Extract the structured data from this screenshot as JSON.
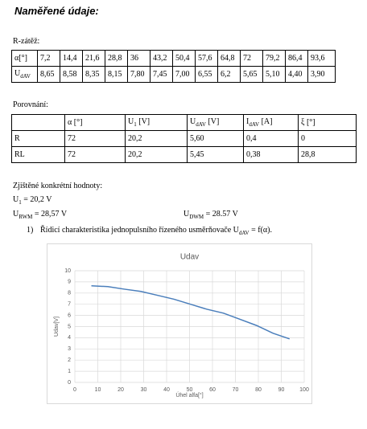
{
  "title": "Naměřené údaje:",
  "section1": {
    "heading": "R-zátěž:",
    "table": {
      "rows": [
        [
          "α[°]",
          "7,2",
          "14,4",
          "21,6",
          "28,8",
          "36",
          "43,2",
          "50,4",
          "57,6",
          "64,8",
          "72",
          "79,2",
          "86,4",
          "93,6"
        ],
        [
          {
            "text": "U",
            "sub": "dAV"
          },
          "8,65",
          "8,58",
          "8,35",
          "8,15",
          "7,80",
          "7,45",
          "7,00",
          "6,55",
          "6,2",
          "5,65",
          "5,10",
          "4,40",
          "3,90"
        ]
      ]
    }
  },
  "section2": {
    "heading": "Porovnání:",
    "table": {
      "rows": [
        [
          null,
          "α [°]",
          {
            "text": "U",
            "sub": "1",
            "suffix": " [V]"
          },
          {
            "text": "U",
            "sub": "dAV",
            "suffix": " [V]"
          },
          {
            "text": "I",
            "sub": "dAV",
            "suffix": " [A]"
          },
          "ξ [°]"
        ],
        [
          "R",
          "72",
          "20,2",
          "5,60",
          "0,4",
          "0"
        ],
        [
          "RL",
          "72",
          "20,2",
          "5,45",
          "0,38",
          "28,8"
        ]
      ]
    }
  },
  "section3": {
    "heading": "Zjištěné konkrétní hodnoty:",
    "u1": {
      "text": "U",
      "sub": "1",
      "suffix": " = 20,2 V"
    },
    "urwm": {
      "text": "U",
      "sub": "RWM",
      "suffix": " = 28,57 V"
    },
    "udwm": {
      "text": "U",
      "sub": "DWM",
      "suffix": " = 28.57 V"
    },
    "item": {
      "number": "1)",
      "text": "Řídicí charakteristika jednopulsního řízeného usměrňovače ",
      "formula": {
        "text": "U",
        "sub": "dAV",
        "suffix": " = f(α)."
      }
    }
  },
  "chart_data": {
    "type": "line",
    "title": "Udav",
    "x_label": "Úhel alfa[°]",
    "y_label": "Udav[V]",
    "x": [
      7.2,
      14.4,
      21.6,
      28.8,
      36,
      43.2,
      50.4,
      57.6,
      64.8,
      72,
      79.2,
      86.4,
      93.6
    ],
    "values": [
      8.65,
      8.58,
      8.35,
      8.15,
      7.8,
      7.45,
      7.0,
      6.55,
      6.2,
      5.65,
      5.1,
      4.4,
      3.9
    ],
    "color": "#4a7ebb",
    "xlim": [
      0,
      100
    ],
    "xticks": [
      0,
      10,
      20,
      30,
      40,
      50,
      60,
      70,
      80,
      90,
      100
    ],
    "ylim": [
      0,
      10
    ],
    "yticks": [
      0,
      1,
      2,
      3,
      4,
      5,
      6,
      7,
      8,
      9,
      10
    ],
    "grid": true
  }
}
